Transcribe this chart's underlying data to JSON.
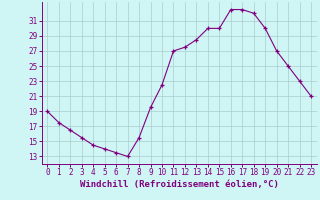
{
  "x": [
    0,
    1,
    2,
    3,
    4,
    5,
    6,
    7,
    8,
    9,
    10,
    11,
    12,
    13,
    14,
    15,
    16,
    17,
    18,
    19,
    20,
    21,
    22,
    23
  ],
  "y": [
    19,
    17.5,
    16.5,
    15.5,
    14.5,
    14,
    13.5,
    13,
    15.5,
    19.5,
    22.5,
    27,
    27.5,
    28.5,
    30,
    30,
    32.5,
    32.5,
    32,
    30,
    27,
    25,
    23,
    21
  ],
  "xlabel": "Windchill (Refroidissement éolien,°C)",
  "yticks": [
    13,
    15,
    17,
    19,
    21,
    23,
    25,
    27,
    29,
    31
  ],
  "xticks": [
    0,
    1,
    2,
    3,
    4,
    5,
    6,
    7,
    8,
    9,
    10,
    11,
    12,
    13,
    14,
    15,
    16,
    17,
    18,
    19,
    20,
    21,
    22,
    23
  ],
  "ylim": [
    12.0,
    33.5
  ],
  "xlim": [
    -0.5,
    23.5
  ],
  "line_color": "#800080",
  "marker": "+",
  "bg_color": "#cff5f5",
  "grid_color": "#aacccc",
  "axis_color": "#800080",
  "tick_color": "#800080",
  "label_color": "#800080",
  "fontsize_ticks": 5.5,
  "fontsize_xlabel": 6.5
}
